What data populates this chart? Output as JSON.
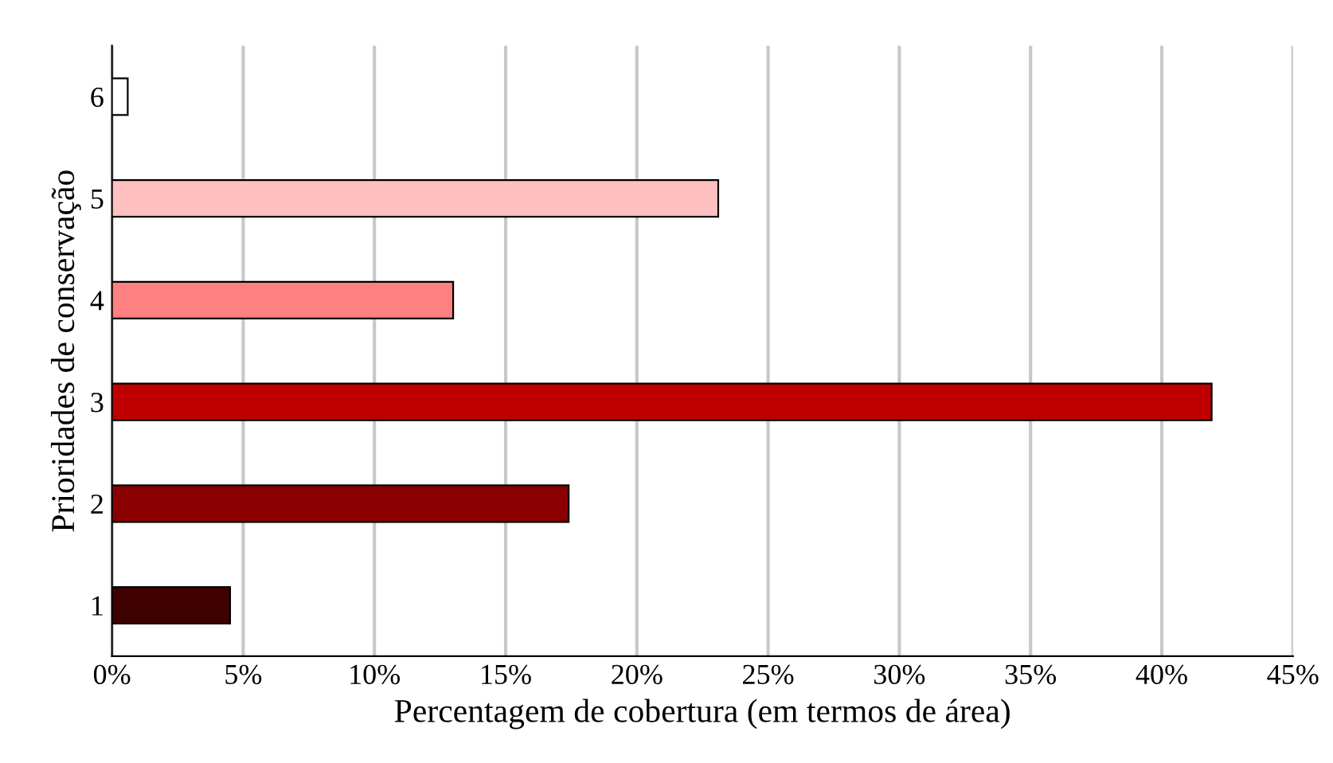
{
  "chart_data": {
    "type": "bar",
    "orientation": "horizontal",
    "xlabel": "Percentagem de cobertura (em termos de área)",
    "ylabel": "Prioridades de conservação",
    "categories": [
      "6",
      "5",
      "4",
      "3",
      "2",
      "1"
    ],
    "values": [
      0.6,
      23.1,
      13.0,
      41.9,
      17.4,
      4.5
    ],
    "colors": [
      "#ffffff",
      "#ffc0c0",
      "#ff8080",
      "#c00000",
      "#8b0000",
      "#3f0000"
    ],
    "xlim": [
      0,
      45
    ],
    "xticks": [
      {
        "value": 0,
        "label": "0%"
      },
      {
        "value": 5,
        "label": "5%"
      },
      {
        "value": 10,
        "label": "10%"
      },
      {
        "value": 15,
        "label": "15%"
      },
      {
        "value": 20,
        "label": "20%"
      },
      {
        "value": 25,
        "label": "25%"
      },
      {
        "value": 30,
        "label": "30%"
      },
      {
        "value": 35,
        "label": "35%"
      },
      {
        "value": 40,
        "label": "40%"
      },
      {
        "value": 45,
        "label": "45%"
      }
    ],
    "grid": "x",
    "legend": false
  }
}
